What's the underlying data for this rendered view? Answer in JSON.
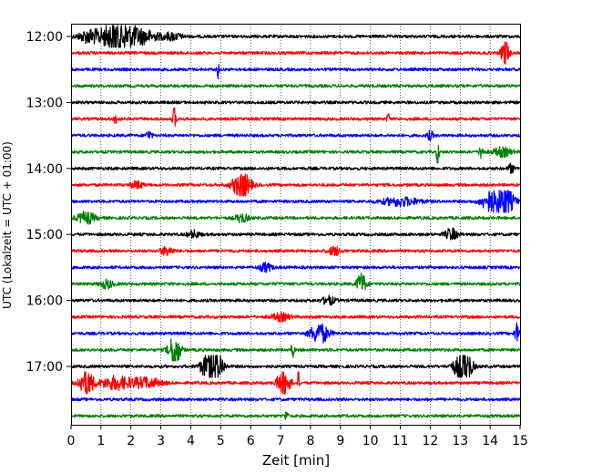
{
  "chart_data": {
    "type": "line",
    "title": "",
    "xlabel": "Zeit  [min]",
    "ylabel": "UTC (Lokalzeit = UTC + 01:00)",
    "xlim": [
      0,
      15
    ],
    "x_ticks": [
      0,
      1,
      2,
      3,
      4,
      5,
      6,
      7,
      8,
      9,
      10,
      11,
      12,
      13,
      14,
      15
    ],
    "x_tick_labels": [
      "0",
      "1",
      "2",
      "3",
      "4",
      "5",
      "6",
      "7",
      "8",
      "9",
      "10",
      "11",
      "12",
      "13",
      "14",
      "15"
    ],
    "y_ticks_hours": [
      12,
      13,
      14,
      15,
      16,
      17
    ],
    "y_tick_labels": [
      "12:00",
      "13:00",
      "14:00",
      "15:00",
      "16:00",
      "17:00"
    ],
    "trace_interval_minutes": 15,
    "start_hour": 12,
    "vertical_grid": "dotted",
    "colors": [
      "#000000",
      "#ff0000",
      "#0000ff",
      "#008000"
    ],
    "traces": [
      {
        "start": "12:00",
        "color": "#000000",
        "events": [
          [
            0.6,
            0.35,
            0.45
          ],
          [
            1.5,
            0.5,
            1.0
          ],
          [
            2.3,
            0.6,
            0.5
          ],
          [
            3.4,
            0.3,
            0.25
          ]
        ]
      },
      {
        "start": "12:15",
        "color": "#ff0000",
        "events": [
          [
            14.5,
            0.12,
            1.0
          ]
        ]
      },
      {
        "start": "12:30",
        "color": "#0000ff",
        "events": [
          [
            4.9,
            0.04,
            0.6
          ]
        ]
      },
      {
        "start": "12:45",
        "color": "#008000",
        "events": []
      },
      {
        "start": "13:00",
        "color": "#000000",
        "events": []
      },
      {
        "start": "13:15",
        "color": "#ff0000",
        "events": [
          [
            1.5,
            0.1,
            0.25
          ],
          [
            3.45,
            0.05,
            0.9
          ],
          [
            10.6,
            0.05,
            0.35
          ]
        ]
      },
      {
        "start": "13:30",
        "color": "#0000ff",
        "events": [
          [
            2.6,
            0.1,
            0.3
          ],
          [
            12.0,
            0.1,
            0.3
          ]
        ]
      },
      {
        "start": "13:45",
        "color": "#008000",
        "events": [
          [
            12.25,
            0.04,
            1.3
          ],
          [
            13.7,
            0.05,
            0.9
          ],
          [
            14.4,
            0.3,
            0.3
          ]
        ]
      },
      {
        "start": "14:00",
        "color": "#000000",
        "events": [
          [
            14.7,
            0.1,
            0.3
          ]
        ]
      },
      {
        "start": "14:15",
        "color": "#ff0000",
        "events": [
          [
            5.7,
            0.3,
            0.9
          ],
          [
            2.2,
            0.2,
            0.25
          ]
        ]
      },
      {
        "start": "14:30",
        "color": "#0000ff",
        "events": [
          [
            11.0,
            0.6,
            0.3
          ],
          [
            14.0,
            0.3,
            0.7
          ],
          [
            14.5,
            0.3,
            0.9
          ]
        ]
      },
      {
        "start": "14:45",
        "color": "#008000",
        "events": [
          [
            0.5,
            0.3,
            0.4
          ],
          [
            5.7,
            0.2,
            0.3
          ]
        ]
      },
      {
        "start": "15:00",
        "color": "#000000",
        "events": [
          [
            12.7,
            0.2,
            0.4
          ],
          [
            4.1,
            0.2,
            0.25
          ]
        ]
      },
      {
        "start": "15:15",
        "color": "#ff0000",
        "events": [
          [
            3.2,
            0.2,
            0.3
          ],
          [
            8.8,
            0.2,
            0.3
          ]
        ]
      },
      {
        "start": "15:30",
        "color": "#0000ff",
        "events": [
          [
            6.5,
            0.2,
            0.3
          ]
        ]
      },
      {
        "start": "15:45",
        "color": "#008000",
        "events": [
          [
            9.7,
            0.15,
            0.75
          ],
          [
            1.2,
            0.2,
            0.3
          ]
        ]
      },
      {
        "start": "16:00",
        "color": "#000000",
        "events": [
          [
            8.6,
            0.2,
            0.3
          ]
        ]
      },
      {
        "start": "16:15",
        "color": "#ff0000",
        "events": [
          [
            7.0,
            0.3,
            0.25
          ]
        ]
      },
      {
        "start": "16:30",
        "color": "#0000ff",
        "events": [
          [
            8.3,
            0.3,
            0.7
          ],
          [
            14.9,
            0.08,
            0.7
          ]
        ]
      },
      {
        "start": "16:45",
        "color": "#008000",
        "events": [
          [
            3.45,
            0.18,
            1.3
          ],
          [
            7.4,
            0.05,
            0.5
          ]
        ]
      },
      {
        "start": "17:00",
        "color": "#000000",
        "events": [
          [
            4.6,
            0.25,
            1.0
          ],
          [
            4.9,
            0.2,
            0.9
          ],
          [
            13.2,
            0.2,
            1.1
          ],
          [
            12.9,
            0.2,
            0.5
          ]
        ]
      },
      {
        "start": "17:15",
        "color": "#ff0000",
        "events": [
          [
            0.5,
            0.25,
            0.9
          ],
          [
            1.5,
            0.5,
            0.45
          ],
          [
            2.5,
            0.5,
            0.35
          ],
          [
            7.1,
            0.2,
            1.0
          ],
          [
            7.6,
            0.02,
            2.2
          ]
        ]
      },
      {
        "start": "17:30",
        "color": "#0000ff",
        "events": []
      },
      {
        "start": "17:45",
        "color": "#008000",
        "events": [
          [
            7.2,
            0.05,
            0.4
          ]
        ]
      }
    ]
  }
}
